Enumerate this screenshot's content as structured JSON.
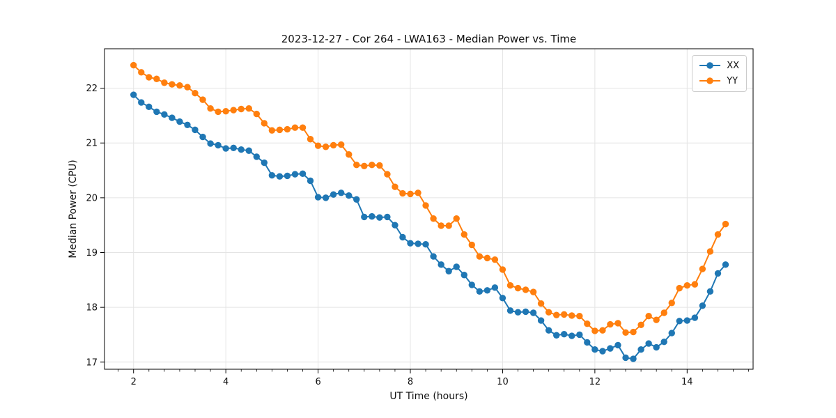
{
  "chart_data": {
    "type": "line",
    "title": "2023-12-27 - Cor 264 - LWA163 - Median Power vs. Time",
    "xlabel": "UT Time (hours)",
    "ylabel": "Median Power (CPU)",
    "xlim": [
      1.37,
      15.43
    ],
    "ylim": [
      16.87,
      22.72
    ],
    "x_ticks": [
      2,
      4,
      6,
      8,
      10,
      12,
      14
    ],
    "y_ticks": [
      17,
      18,
      19,
      20,
      21,
      22
    ],
    "x_minor_tick_interval": 0.333,
    "grid": true,
    "marker": "circle",
    "legend_position": "upper right",
    "x": [
      2,
      2.167,
      2.333,
      2.5,
      2.667,
      2.833,
      3,
      3.167,
      3.333,
      3.5,
      3.667,
      3.833,
      4,
      4.167,
      4.333,
      4.5,
      4.667,
      4.833,
      5,
      5.167,
      5.333,
      5.5,
      5.667,
      5.833,
      6,
      6.167,
      6.333,
      6.5,
      6.667,
      6.833,
      7,
      7.167,
      7.333,
      7.5,
      7.667,
      7.833,
      8,
      8.167,
      8.333,
      8.5,
      8.667,
      8.833,
      9,
      9.167,
      9.333,
      9.5,
      9.667,
      9.833,
      10,
      10.167,
      10.333,
      10.5,
      10.667,
      10.833,
      11,
      11.167,
      11.333,
      11.5,
      11.667,
      11.833,
      12,
      12.167,
      12.333,
      12.5,
      12.667,
      12.833,
      13,
      13.167,
      13.333,
      13.5,
      13.667,
      13.833,
      14,
      14.167,
      14.333,
      14.5,
      14.667,
      14.833
    ],
    "series": [
      {
        "name": "XX",
        "color": "#1f77b4",
        "values": [
          21.88,
          21.74,
          21.66,
          21.57,
          21.52,
          21.46,
          21.39,
          21.33,
          21.24,
          21.11,
          20.99,
          20.96,
          20.9,
          20.91,
          20.88,
          20.86,
          20.75,
          20.64,
          20.41,
          20.39,
          20.4,
          20.43,
          20.44,
          20.31,
          20.01,
          20.0,
          20.06,
          20.09,
          20.04,
          19.97,
          19.65,
          19.66,
          19.64,
          19.65,
          19.5,
          19.28,
          19.17,
          19.16,
          19.15,
          18.93,
          18.78,
          18.66,
          18.74,
          18.59,
          18.41,
          18.29,
          18.31,
          18.36,
          18.17,
          17.94,
          17.91,
          17.92,
          17.9,
          17.76,
          17.58,
          17.49,
          17.51,
          17.48,
          17.5,
          17.36,
          17.23,
          17.2,
          17.25,
          17.31,
          17.08,
          17.06,
          17.23,
          17.34,
          17.27,
          17.37,
          17.53,
          17.75,
          17.76,
          17.81,
          18.03,
          18.29,
          18.62,
          18.78
        ]
      },
      {
        "name": "YY",
        "color": "#ff7f0e",
        "values": [
          22.42,
          22.29,
          22.2,
          22.17,
          22.1,
          22.07,
          22.05,
          22.02,
          21.91,
          21.79,
          21.63,
          21.57,
          21.58,
          21.6,
          21.62,
          21.63,
          21.53,
          21.36,
          21.23,
          21.24,
          21.25,
          21.28,
          21.28,
          21.07,
          20.95,
          20.93,
          20.96,
          20.97,
          20.79,
          20.6,
          20.58,
          20.6,
          20.59,
          20.43,
          20.2,
          20.08,
          20.07,
          20.09,
          19.86,
          19.62,
          19.49,
          19.49,
          19.62,
          19.33,
          19.14,
          18.93,
          18.9,
          18.87,
          18.69,
          18.4,
          18.35,
          18.32,
          18.28,
          18.07,
          17.91,
          17.86,
          17.87,
          17.85,
          17.84,
          17.7,
          17.57,
          17.58,
          17.69,
          17.71,
          17.54,
          17.55,
          17.68,
          17.84,
          17.77,
          17.9,
          18.08,
          18.35,
          18.4,
          18.42,
          18.7,
          19.02,
          19.33,
          19.52
        ]
      }
    ]
  }
}
